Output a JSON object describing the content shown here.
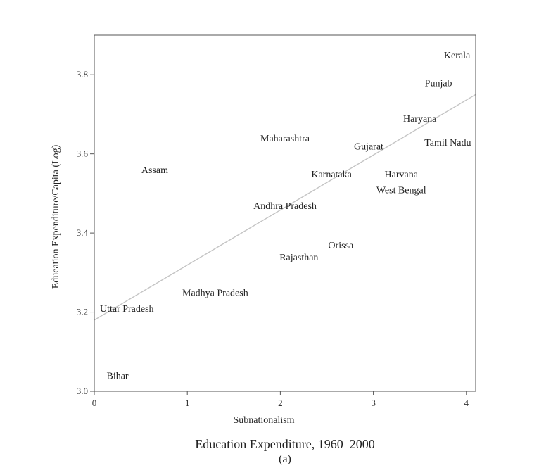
{
  "caption": "Education Expenditure, 1960–2000",
  "subcaption": "(a)",
  "chart_data": {
    "type": "scatter",
    "title": "",
    "xlabel": "Subnationalism",
    "ylabel": "Education Expenditure/Capita (Log)",
    "xlim": [
      0,
      4.1
    ],
    "ylim": [
      3.0,
      3.9
    ],
    "xticks": [
      0,
      1,
      2,
      3,
      4
    ],
    "yticks": [
      3.0,
      3.2,
      3.4,
      3.6,
      3.8
    ],
    "xtick_labels": [
      "0",
      "1",
      "2",
      "3",
      "4"
    ],
    "ytick_labels": [
      "3.0",
      "3.2",
      "3.4",
      "3.6",
      "3.8"
    ],
    "grid": false,
    "marker": "text-label",
    "points": [
      {
        "label": "Kerala",
        "x": 3.9,
        "y": 3.85
      },
      {
        "label": "Punjab",
        "x": 3.7,
        "y": 3.78
      },
      {
        "label": "Haryana",
        "x": 3.5,
        "y": 3.69
      },
      {
        "label": "Tamil Nadu",
        "x": 3.8,
        "y": 3.63
      },
      {
        "label": "Maharashtra",
        "x": 2.05,
        "y": 3.64
      },
      {
        "label": "Gujarat",
        "x": 2.95,
        "y": 3.62
      },
      {
        "label": "Assam",
        "x": 0.65,
        "y": 3.56
      },
      {
        "label": "Karnataka",
        "x": 2.55,
        "y": 3.55
      },
      {
        "label": "Harvana",
        "x": 3.3,
        "y": 3.55
      },
      {
        "label": "West Bengal",
        "x": 3.3,
        "y": 3.51
      },
      {
        "label": "Andhra Pradesh",
        "x": 2.05,
        "y": 3.47
      },
      {
        "label": "Orissa",
        "x": 2.65,
        "y": 3.37
      },
      {
        "label": "Rajasthan",
        "x": 2.2,
        "y": 3.34
      },
      {
        "label": "Madhya Pradesh",
        "x": 1.3,
        "y": 3.25
      },
      {
        "label": "Uttar Pradesh",
        "x": 0.35,
        "y": 3.21
      },
      {
        "label": "Bihar",
        "x": 0.25,
        "y": 3.04
      }
    ],
    "fit_line": {
      "x": [
        0,
        4.1
      ],
      "y": [
        3.18,
        3.75
      ]
    }
  }
}
